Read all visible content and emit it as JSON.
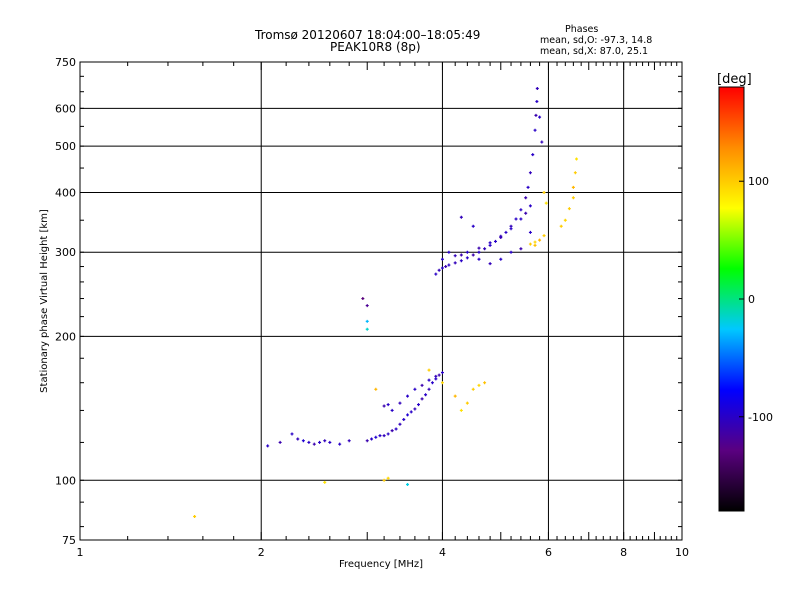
{
  "header": {
    "title": "Tromsø 20120607 18:04:00–18:05:49",
    "subtitle": "PEAK10R8 (8p)",
    "stats_title": "Phases",
    "stats_o": "mean, sd,O: -97.3, 14.8",
    "stats_x": "mean, sd,X:  87.0, 25.1"
  },
  "colorbar": {
    "label": "[deg]",
    "ticks": [
      {
        "value": 100,
        "label": "100"
      },
      {
        "value": 0,
        "label": "0"
      },
      {
        "value": -100,
        "label": "-100"
      }
    ],
    "range": [
      -180,
      180
    ],
    "colors": [
      "#000000",
      "#5a0080",
      "#0000ff",
      "#00c8ff",
      "#00ff00",
      "#ffff00",
      "#ff8c00",
      "#ff0000"
    ]
  },
  "chart_data": {
    "type": "scatter",
    "title": "Tromsø 20120607 18:04:00–18:05:49",
    "subtitle": "PEAK10R8 (8p)",
    "xlabel": "Frequency [MHz]",
    "ylabel": "Stationary phase Virtual Height [km]",
    "xscale": "log",
    "yscale": "log",
    "xlim": [
      1,
      10
    ],
    "ylim": [
      75,
      750
    ],
    "x_ticks": [
      {
        "value": 1,
        "label": "1"
      },
      {
        "value": 2,
        "label": "2"
      },
      {
        "value": 4,
        "label": "4"
      },
      {
        "value": 6,
        "label": "6"
      },
      {
        "value": 8,
        "label": "8"
      },
      {
        "value": 10,
        "label": "10"
      }
    ],
    "y_ticks": [
      {
        "value": 75,
        "label": "75"
      },
      {
        "value": 100,
        "label": "100"
      },
      {
        "value": 200,
        "label": "200"
      },
      {
        "value": 300,
        "label": "300"
      },
      {
        "value": 400,
        "label": "400"
      },
      {
        "value": 500,
        "label": "500"
      },
      {
        "value": 600,
        "label": "600"
      },
      {
        "value": 750,
        "label": "750"
      }
    ],
    "grid_x": [
      2,
      4,
      6,
      8
    ],
    "grid_y": [
      100,
      200,
      300,
      400,
      500,
      600
    ],
    "grid": true,
    "series": [
      {
        "points": [
          [
            2.05,
            118,
            -100
          ],
          [
            2.15,
            120,
            -110
          ],
          [
            2.25,
            125,
            -100
          ],
          [
            2.3,
            122,
            -105
          ],
          [
            2.35,
            121,
            -95
          ],
          [
            2.4,
            120,
            -100
          ],
          [
            2.45,
            119,
            -110
          ],
          [
            2.5,
            120,
            -100
          ],
          [
            2.55,
            121,
            -105
          ],
          [
            2.6,
            120,
            -100
          ],
          [
            2.7,
            119,
            -100
          ],
          [
            2.8,
            121,
            -105
          ],
          [
            3.0,
            121,
            -110
          ],
          [
            3.05,
            122,
            -100
          ],
          [
            3.1,
            123,
            -95
          ],
          [
            3.15,
            124,
            -100
          ],
          [
            3.2,
            124,
            -105
          ],
          [
            3.25,
            125,
            -100
          ],
          [
            3.3,
            127,
            -110
          ],
          [
            3.35,
            128,
            -100
          ],
          [
            3.4,
            131,
            -105
          ],
          [
            3.45,
            134,
            -100
          ],
          [
            3.5,
            137,
            -95
          ],
          [
            3.55,
            139,
            -100
          ],
          [
            3.6,
            141,
            -105
          ],
          [
            3.65,
            144,
            -100
          ],
          [
            3.7,
            148,
            -110
          ],
          [
            3.75,
            151,
            -100
          ],
          [
            3.8,
            155,
            -105
          ],
          [
            3.85,
            160,
            -100
          ],
          [
            3.9,
            163,
            -100
          ],
          [
            3.95,
            166,
            -110
          ],
          [
            3.3,
            140,
            -100
          ],
          [
            3.4,
            145,
            -105
          ],
          [
            3.5,
            150,
            -100
          ],
          [
            3.6,
            155,
            -100
          ],
          [
            3.7,
            158,
            -110
          ],
          [
            3.8,
            162,
            -100
          ],
          [
            3.9,
            165,
            -105
          ],
          [
            4.0,
            168,
            -100
          ],
          [
            3.2,
            143,
            -110
          ],
          [
            3.25,
            144,
            -100
          ],
          [
            3.9,
            270,
            -100
          ],
          [
            3.95,
            275,
            -105
          ],
          [
            4.0,
            278,
            -100
          ],
          [
            4.05,
            280,
            -110
          ],
          [
            4.1,
            282,
            -100
          ],
          [
            4.2,
            285,
            -105
          ],
          [
            4.3,
            288,
            -100
          ],
          [
            4.4,
            292,
            -100
          ],
          [
            4.5,
            296,
            -110
          ],
          [
            4.6,
            300,
            -100
          ],
          [
            4.7,
            305,
            -105
          ],
          [
            4.8,
            310,
            -100
          ],
          [
            4.9,
            316,
            -100
          ],
          [
            5.0,
            322,
            -110
          ],
          [
            5.1,
            330,
            -100
          ],
          [
            5.2,
            340,
            -105
          ],
          [
            5.3,
            352,
            -100
          ],
          [
            5.4,
            368,
            -100
          ],
          [
            5.5,
            390,
            -110
          ],
          [
            5.55,
            410,
            -100
          ],
          [
            5.6,
            440,
            -105
          ],
          [
            5.65,
            480,
            -100
          ],
          [
            5.7,
            540,
            -100
          ],
          [
            5.72,
            580,
            -110
          ],
          [
            5.74,
            620,
            -100
          ],
          [
            5.75,
            660,
            -105
          ],
          [
            4.0,
            290,
            -100
          ],
          [
            4.2,
            295,
            -105
          ],
          [
            4.4,
            300,
            -100
          ],
          [
            4.6,
            306,
            -110
          ],
          [
            4.8,
            314,
            -100
          ],
          [
            5.0,
            324,
            -105
          ],
          [
            5.2,
            336,
            -100
          ],
          [
            5.4,
            352,
            -100
          ],
          [
            5.5,
            362,
            -110
          ],
          [
            5.6,
            375,
            -100
          ],
          [
            4.3,
            355,
            -105
          ],
          [
            4.5,
            340,
            -100
          ],
          [
            4.1,
            300,
            -100
          ],
          [
            4.3,
            296,
            -110
          ],
          [
            4.6,
            290,
            -100
          ],
          [
            4.8,
            284,
            -105
          ],
          [
            5.0,
            290,
            -100
          ],
          [
            5.2,
            300,
            -100
          ],
          [
            5.4,
            305,
            -110
          ],
          [
            5.6,
            330,
            -100
          ],
          [
            5.8,
            575,
            -100
          ],
          [
            5.85,
            510,
            -105
          ],
          [
            2.95,
            240,
            -130
          ],
          [
            3.0,
            232,
            -120
          ],
          [
            3.0,
            215,
            -30
          ],
          [
            3.0,
            207,
            -15
          ]
        ]
      },
      {
        "points": [
          [
            5.6,
            312,
            100
          ],
          [
            5.7,
            315,
            95
          ],
          [
            5.8,
            318,
            110
          ],
          [
            5.9,
            325,
            100
          ],
          [
            5.95,
            380,
            90
          ],
          [
            5.9,
            400,
            100
          ],
          [
            5.7,
            310,
            105
          ],
          [
            6.3,
            340,
            100
          ],
          [
            6.4,
            350,
            95
          ],
          [
            6.5,
            370,
            100
          ],
          [
            6.6,
            410,
            110
          ],
          [
            6.65,
            440,
            100
          ],
          [
            6.68,
            470,
            90
          ],
          [
            6.6,
            390,
            100
          ],
          [
            3.8,
            170,
            100
          ],
          [
            4.0,
            160,
            95
          ],
          [
            4.2,
            150,
            110
          ],
          [
            4.5,
            155,
            100
          ],
          [
            4.6,
            158,
            95
          ],
          [
            4.7,
            160,
            105
          ],
          [
            4.4,
            145,
            100
          ],
          [
            4.3,
            140,
            90
          ],
          [
            3.2,
            100,
            100
          ],
          [
            3.25,
            101,
            95
          ],
          [
            3.1,
            155,
            110
          ],
          [
            1.55,
            84,
            100
          ],
          [
            2.55,
            99,
            90
          ],
          [
            3.5,
            98,
            -20
          ]
        ]
      }
    ]
  }
}
